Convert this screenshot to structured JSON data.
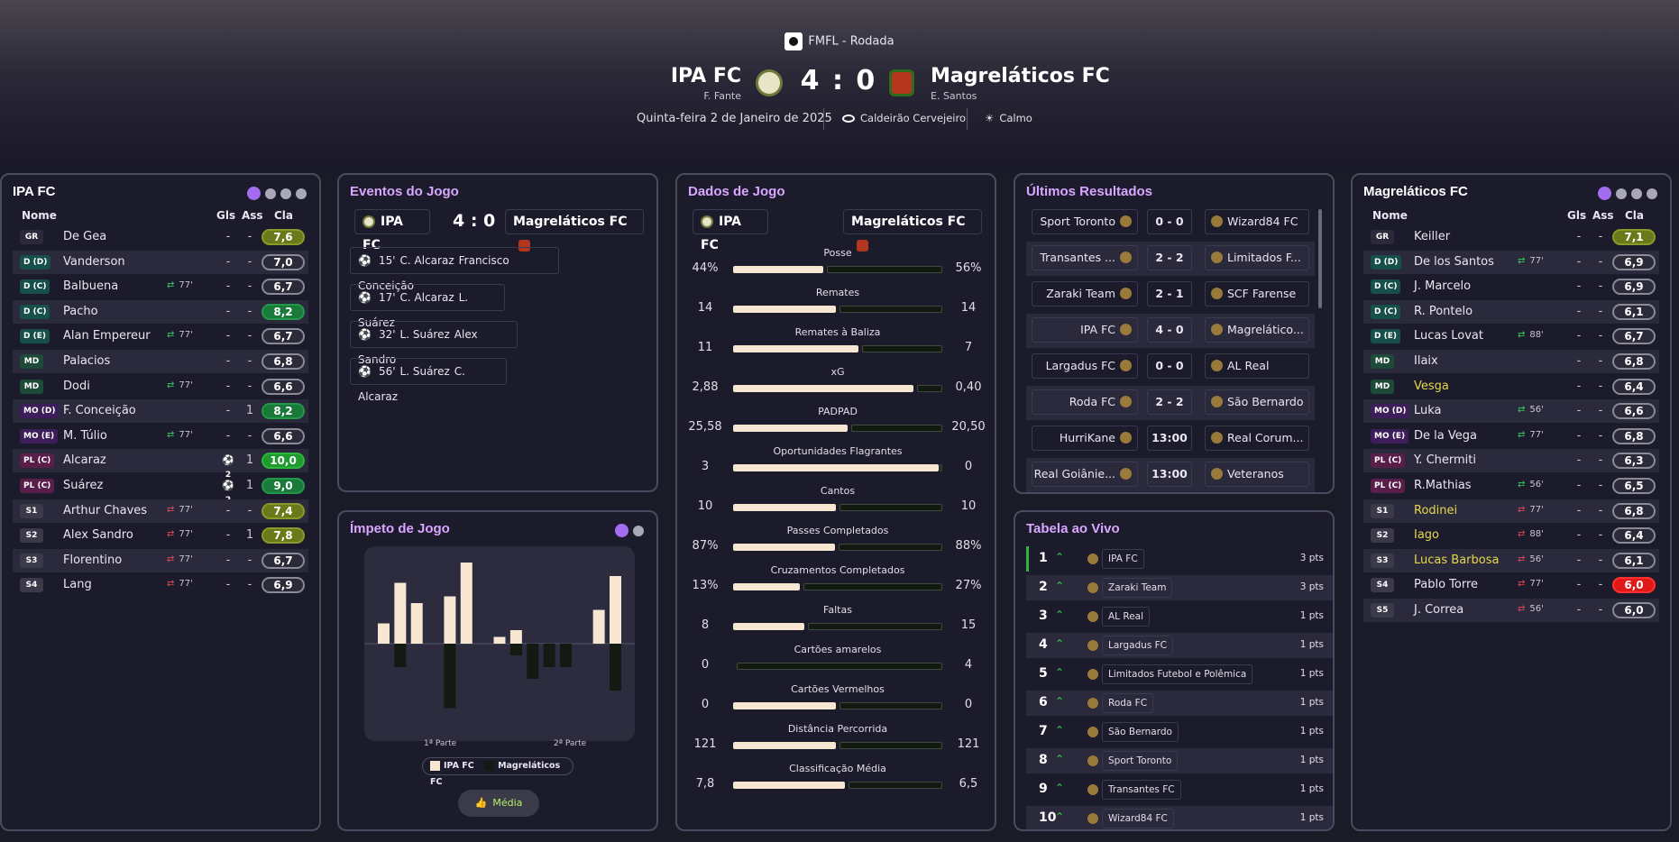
{
  "header": {
    "competition": "FMFL - Rodada",
    "home_team": "IPA FC",
    "home_manager": "F. Fante",
    "away_team": "Magreláticos FC",
    "away_manager": "E. Santos",
    "score": "4 : 0",
    "date": "Quinta-feira 2 de Janeiro de 2025",
    "stadium": "Caldeirão Cervejeiro",
    "weather": "Calmo"
  },
  "home_panel": {
    "title": "IPA FC",
    "col_name": "Nome",
    "col_goals": "Gls",
    "col_assists": "Ass",
    "col_rating": "Cla",
    "players": [
      {
        "pos": "GR",
        "name": "De Gea",
        "sub": "",
        "goals": "-",
        "assists": "-",
        "rating": "7,6"
      },
      {
        "pos": "D (D)",
        "name": "Vanderson",
        "sub": "",
        "goals": "-",
        "assists": "-",
        "rating": "7,0"
      },
      {
        "pos": "D (C)",
        "name": "Balbuena",
        "sub": "77'",
        "goals": "-",
        "assists": "-",
        "rating": "6,7"
      },
      {
        "pos": "D (C)",
        "name": "Pacho",
        "sub": "",
        "goals": "-",
        "assists": "-",
        "rating": "8,2"
      },
      {
        "pos": "D (E)",
        "name": "Alan Empereur",
        "sub": "77'",
        "goals": "-",
        "assists": "-",
        "rating": "6,7"
      },
      {
        "pos": "MD",
        "name": "Palacios",
        "sub": "",
        "goals": "-",
        "assists": "-",
        "rating": "6,8"
      },
      {
        "pos": "MD",
        "name": "Dodi",
        "sub": "77'",
        "goals": "-",
        "assists": "-",
        "rating": "6,6"
      },
      {
        "pos": "MO (D)",
        "name": "F. Conceição",
        "sub": "",
        "goals": "-",
        "assists": "1",
        "rating": "8,2"
      },
      {
        "pos": "MO (E)",
        "name": "M. Túlio",
        "sub": "77'",
        "goals": "-",
        "assists": "-",
        "rating": "6,6"
      },
      {
        "pos": "PL (C)",
        "name": "Alcaraz",
        "sub": "",
        "goals": "2",
        "assists": "1",
        "rating": "10,0"
      },
      {
        "pos": "PL (C)",
        "name": "Suárez",
        "sub": "",
        "goals": "2",
        "assists": "1",
        "rating": "9,0"
      },
      {
        "pos": "S1",
        "name": "Arthur Chaves",
        "sub": "77'",
        "goals": "-",
        "assists": "-",
        "rating": "7,4"
      },
      {
        "pos": "S2",
        "name": "Alex Sandro",
        "sub": "77'",
        "goals": "-",
        "assists": "1",
        "rating": "7,8"
      },
      {
        "pos": "S3",
        "name": "Florentino",
        "sub": "77'",
        "goals": "-",
        "assists": "-",
        "rating": "6,7"
      },
      {
        "pos": "S4",
        "name": "Lang",
        "sub": "77'",
        "goals": "-",
        "assists": "-",
        "rating": "6,9"
      }
    ]
  },
  "away_panel": {
    "title": "Magreláticos FC",
    "col_name": "Nome",
    "col_goals": "Gls",
    "col_assists": "Ass",
    "col_rating": "Cla",
    "players": [
      {
        "pos": "GR",
        "name": "Keiller",
        "sub": "",
        "goals": "-",
        "assists": "-",
        "rating": "7,1"
      },
      {
        "pos": "D (D)",
        "name": "De los Santos",
        "sub": "77'",
        "goals": "-",
        "assists": "-",
        "rating": "6,9"
      },
      {
        "pos": "D (C)",
        "name": "J. Marcelo",
        "sub": "",
        "goals": "-",
        "assists": "-",
        "rating": "6,9"
      },
      {
        "pos": "D (C)",
        "name": "R. Pontelo",
        "sub": "",
        "goals": "-",
        "assists": "-",
        "rating": "6,1"
      },
      {
        "pos": "D (E)",
        "name": "Lucas Lovat",
        "sub": "88'",
        "goals": "-",
        "assists": "-",
        "rating": "6,7"
      },
      {
        "pos": "MD",
        "name": "Ilaix",
        "sub": "",
        "goals": "-",
        "assists": "-",
        "rating": "6,8"
      },
      {
        "pos": "MD",
        "name": "Vesga",
        "sub": "",
        "goals": "-",
        "assists": "-",
        "rating": "6,4"
      },
      {
        "pos": "MO (D)",
        "name": "Luka",
        "sub": "56'",
        "goals": "-",
        "assists": "-",
        "rating": "6,6"
      },
      {
        "pos": "MO (E)",
        "name": "De la Vega",
        "sub": "77'",
        "goals": "-",
        "assists": "-",
        "rating": "6,8"
      },
      {
        "pos": "PL (C)",
        "name": "Y. Chermiti",
        "sub": "",
        "goals": "-",
        "assists": "-",
        "rating": "6,3"
      },
      {
        "pos": "PL (C)",
        "name": "R.Mathias",
        "sub": "56'",
        "goals": "-",
        "assists": "-",
        "rating": "6,5"
      },
      {
        "pos": "S1",
        "name": "Rodinei",
        "sub": "77'",
        "goals": "-",
        "assists": "-",
        "rating": "6,8"
      },
      {
        "pos": "S2",
        "name": "Iago",
        "sub": "88'",
        "goals": "-",
        "assists": "-",
        "rating": "6,4"
      },
      {
        "pos": "S3",
        "name": "Lucas Barbosa",
        "sub": "56'",
        "goals": "-",
        "assists": "-",
        "rating": "6,1"
      },
      {
        "pos": "S4",
        "name": "Pablo Torre",
        "sub": "77'",
        "goals": "-",
        "assists": "-",
        "rating": "6,0"
      },
      {
        "pos": "S5",
        "name": "J. Correa",
        "sub": "56'",
        "goals": "-",
        "assists": "-",
        "rating": "6,0"
      }
    ]
  },
  "events": {
    "title": "Eventos do Jogo",
    "home": "IPA FC",
    "away": "Magreláticos FC",
    "score": "4 : 0",
    "items": [
      {
        "minute": "15'",
        "scorer": "C. Alcaraz",
        "assist": "Francisco Conceição"
      },
      {
        "minute": "17'",
        "scorer": "C. Alcaraz",
        "assist": "L. Suárez"
      },
      {
        "minute": "32'",
        "scorer": "L. Suárez",
        "assist": "Alex Sandro"
      },
      {
        "minute": "56'",
        "scorer": "L. Suárez",
        "assist": "C. Alcaraz"
      }
    ]
  },
  "momentum": {
    "title": "Ímpeto de Jogo",
    "first_half": "1ª Parte",
    "second_half": "2ª Parte",
    "legend_home": "IPA FC",
    "legend_away": "Magreláticos FC",
    "button": "Média",
    "chart_data": {
      "type": "bar",
      "series": [
        {
          "name": "IPA FC",
          "values": [
            3,
            9,
            6,
            0,
            7,
            12,
            0,
            1,
            2,
            0,
            0,
            0,
            0,
            5,
            10
          ]
        },
        {
          "name": "Magreláticos FC",
          "values": [
            0,
            4,
            0,
            0,
            11,
            0,
            0,
            0,
            2,
            6,
            4,
            4,
            0,
            0,
            8
          ]
        }
      ]
    }
  },
  "stats": {
    "title": "Dados de Jogo",
    "home": "IPA FC",
    "away": "Magreláticos FC",
    "rows": [
      {
        "label": "Posse",
        "home": "44%",
        "away": "56%",
        "h": 44,
        "a": 56
      },
      {
        "label": "Remates",
        "home": "14",
        "away": "14",
        "h": 14,
        "a": 14
      },
      {
        "label": "Remates à Baliza",
        "home": "11",
        "away": "7",
        "h": 11,
        "a": 7
      },
      {
        "label": "xG",
        "home": "2,88",
        "away": "0,40",
        "h": 2.88,
        "a": 0.4
      },
      {
        "label": "PADPAD",
        "home": "25,58",
        "away": "20,50",
        "h": 25.58,
        "a": 20.5
      },
      {
        "label": "Oportunidades Flagrantes",
        "home": "3",
        "away": "0",
        "h": 3,
        "a": 0
      },
      {
        "label": "Cantos",
        "home": "10",
        "away": "10",
        "h": 10,
        "a": 10
      },
      {
        "label": "Passes Completados",
        "home": "87%",
        "away": "88%",
        "h": 87,
        "a": 88
      },
      {
        "label": "Cruzamentos Completados",
        "home": "13%",
        "away": "27%",
        "h": 13,
        "a": 27
      },
      {
        "label": "Faltas",
        "home": "8",
        "away": "15",
        "h": 8,
        "a": 15
      },
      {
        "label": "Cartões amarelos",
        "home": "0",
        "away": "4",
        "h": 0,
        "a": 4
      },
      {
        "label": "Cartões Vermelhos",
        "home": "0",
        "away": "0",
        "h": 0,
        "a": 0
      },
      {
        "label": "Distância Percorrida",
        "home": "121",
        "away": "121",
        "h": 121,
        "a": 121
      },
      {
        "label": "Classificação Média",
        "home": "7,8",
        "away": "6,5",
        "h": 7.8,
        "a": 6.5
      }
    ]
  },
  "results": {
    "title": "Últimos Resultados",
    "items": [
      {
        "home": "Sport Toronto",
        "score": "0 - 0",
        "away": "Wizard84 FC"
      },
      {
        "home": "Transantes ...",
        "score": "2 - 2",
        "away": "Limitados F..."
      },
      {
        "home": "Zaraki Team",
        "score": "2 - 1",
        "away": "SCF Farense"
      },
      {
        "home": "IPA FC",
        "score": "4 - 0",
        "away": "Magreláticо..."
      },
      {
        "home": "Largadus FC",
        "score": "0 - 0",
        "away": "AL Real"
      },
      {
        "home": "Roda FC",
        "score": "2 - 2",
        "away": "São Bernardo"
      },
      {
        "home": "HurriKane",
        "score": "13:00",
        "away": "Real Corum..."
      },
      {
        "home": "Real Goiânie...",
        "score": "13:00",
        "away": "Veteranos"
      }
    ]
  },
  "table": {
    "title": "Tabela ao Vivo",
    "rows": [
      {
        "pos": "1",
        "team": "IPA FC",
        "pts": "3 pts"
      },
      {
        "pos": "2",
        "team": "Zaraki Team",
        "pts": "3 pts"
      },
      {
        "pos": "3",
        "team": "AL Real",
        "pts": "1 pts"
      },
      {
        "pos": "4",
        "team": "Largadus FC",
        "pts": "1 pts"
      },
      {
        "pos": "5",
        "team": "Limitados Futebol e Polêmica",
        "pts": "1 pts"
      },
      {
        "pos": "6",
        "team": "Roda FC",
        "pts": "1 pts"
      },
      {
        "pos": "7",
        "team": "São Bernardo",
        "pts": "1 pts"
      },
      {
        "pos": "8",
        "team": "Sport Toronto",
        "pts": "1 pts"
      },
      {
        "pos": "9",
        "team": "Transantes FC",
        "pts": "1 pts"
      },
      {
        "pos": "10",
        "team": "Wizard84 FC",
        "pts": "1 pts"
      }
    ]
  },
  "colors": {
    "accent": "#d9a6ff",
    "home_bar": "#f6e6d2",
    "away_bar": "#121a12",
    "dot_on": "#a46cf0"
  }
}
